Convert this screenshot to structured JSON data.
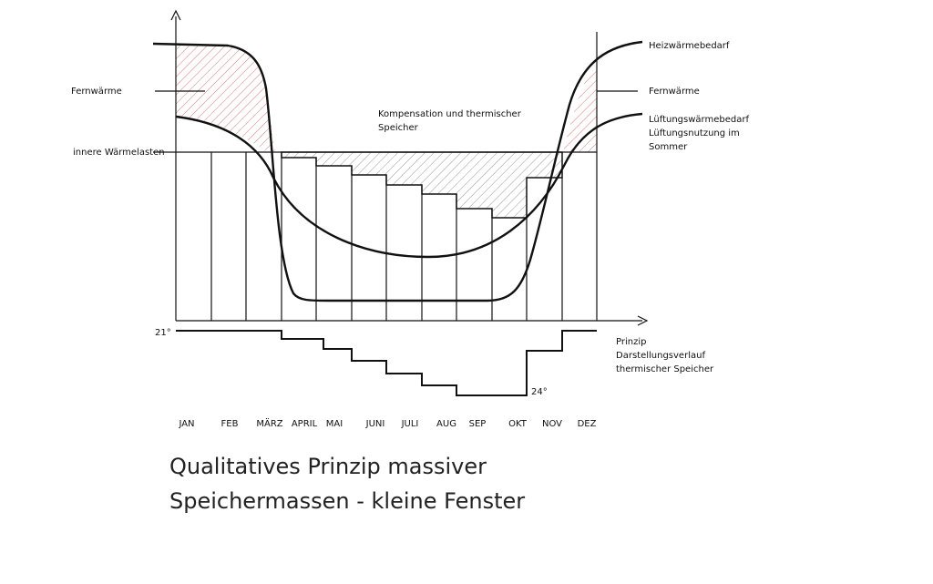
{
  "labels": {
    "fernwaerme_left": "Fernwärme",
    "innere": "innere Wärmelasten",
    "kompensation": [
      "Kompensation und thermischer",
      "Speicher"
    ],
    "heiz": "Heizwärmebedarf",
    "fernwaerme_right": "Fernwärme",
    "lueftung": [
      "Lüftungswärmebedarf",
      "Lüftungsnutzung im",
      "Sommer"
    ],
    "t21": "21°",
    "t24": "24°",
    "prinzip": [
      "Prinzip",
      "Darstellungsverlauf",
      "thermischer Speicher"
    ]
  },
  "months": [
    "JAN",
    "FEB",
    "MÄRZ",
    "APRIL",
    "MAI",
    "JUNI",
    "JULI",
    "AUG",
    "SEP",
    "OKT",
    "NOV",
    "DEZ"
  ],
  "title": [
    "Qualitatives Prinzip massiver",
    "Speichermassen - kleine Fenster"
  ]
}
